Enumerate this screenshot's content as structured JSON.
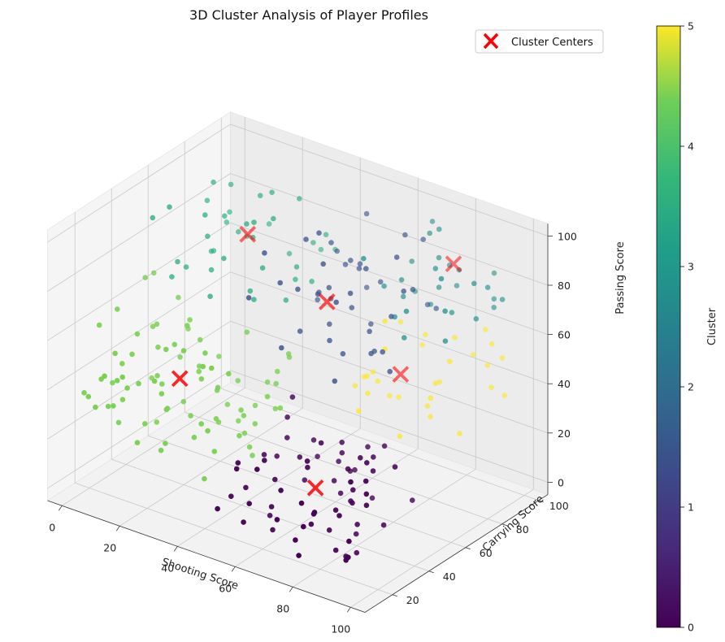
{
  "chart_data": {
    "type": "scatter",
    "title": "3D Cluster Analysis of Player Profiles",
    "xlabel": "Shooting Score",
    "ylabel": "Carrying Score",
    "zlabel": "Passing Score",
    "x_ticks": [
      0,
      20,
      40,
      60,
      80,
      100
    ],
    "y_ticks": [
      20,
      40,
      60,
      80,
      100
    ],
    "z_ticks": [
      0,
      20,
      40,
      60,
      80,
      100
    ],
    "xlim": [
      -5,
      105
    ],
    "ylim": [
      5,
      105
    ],
    "zlim": [
      -5,
      105
    ],
    "grid": true,
    "colorbar": {
      "label": "Cluster",
      "colormap": "viridis",
      "range": [
        0,
        5
      ],
      "ticks": [
        0,
        1,
        2,
        3,
        4,
        5
      ]
    },
    "legend": {
      "position": "top-right",
      "entries": [
        {
          "label": "Cluster Centers",
          "marker": "x",
          "color": "#ff0000"
        }
      ]
    },
    "cluster_centers": [
      {
        "cluster": 0,
        "x": 72,
        "y": 30,
        "z": 20
      },
      {
        "cluster": 1,
        "x": 57,
        "y": 60,
        "z": 75
      },
      {
        "cluster": 2,
        "x": 85,
        "y": 85,
        "z": 90
      },
      {
        "cluster": 3,
        "x": 20,
        "y": 75,
        "z": 80
      },
      {
        "cluster": 4,
        "x": 25,
        "y": 30,
        "z": 45
      },
      {
        "cluster": 5,
        "x": 73,
        "y": 75,
        "z": 45
      }
    ],
    "cluster_spread": [
      {
        "cluster": 0,
        "x": [
          50,
          100
        ],
        "y": [
          5,
          55
        ],
        "z": [
          0,
          40
        ]
      },
      {
        "cluster": 1,
        "x": [
          40,
          80
        ],
        "y": [
          40,
          90
        ],
        "z": [
          55,
          100
        ]
      },
      {
        "cluster": 2,
        "x": [
          65,
          100
        ],
        "y": [
          60,
          100
        ],
        "z": [
          65,
          100
        ]
      },
      {
        "cluster": 3,
        "x": [
          0,
          40
        ],
        "y": [
          50,
          100
        ],
        "z": [
          60,
          100
        ]
      },
      {
        "cluster": 4,
        "x": [
          0,
          50
        ],
        "y": [
          5,
          55
        ],
        "z": [
          20,
          70
        ]
      },
      {
        "cluster": 5,
        "x": [
          55,
          100
        ],
        "y": [
          55,
          100
        ],
        "z": [
          25,
          65
        ]
      }
    ],
    "points_per_cluster": [
      70,
      45,
      30,
      40,
      85,
      30
    ]
  }
}
